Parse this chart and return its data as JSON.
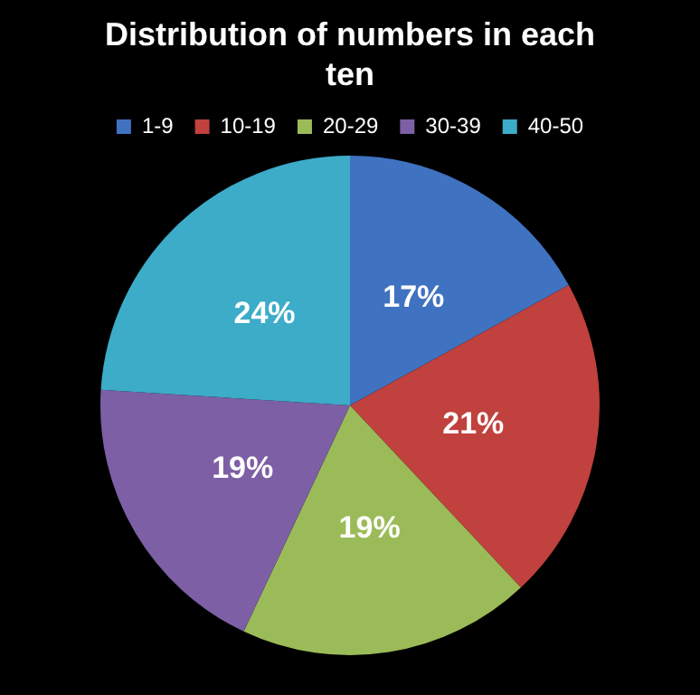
{
  "chart_data": {
    "type": "pie",
    "title": "Distribution of numbers in each ten",
    "categories": [
      "1-9",
      "10-19",
      "20-29",
      "30-39",
      "40-50"
    ],
    "values": [
      17,
      21,
      19,
      19,
      24
    ],
    "value_labels": [
      "17%",
      "21%",
      "19%",
      "19%",
      "24%"
    ],
    "colors": [
      "#3f72c0",
      "#c0413d",
      "#9bbb59",
      "#7d5fa5",
      "#3cacc9"
    ],
    "legend": "top"
  }
}
